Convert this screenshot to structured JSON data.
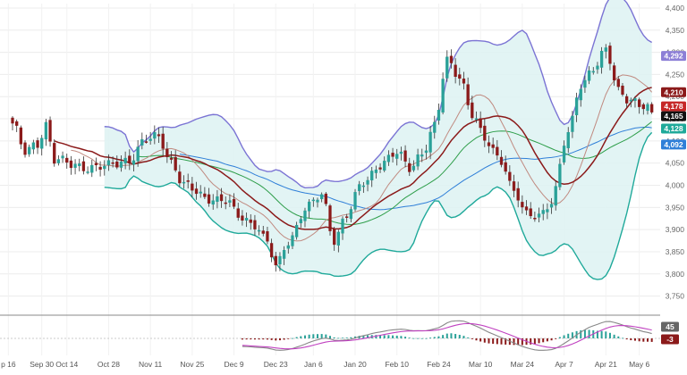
{
  "chart_data": {
    "type": "candlestick",
    "title": "",
    "xlabel": "",
    "ylabel": "",
    "grid": true,
    "ylim": [
      3725,
      4410
    ],
    "y_ticks": [
      3750,
      3800,
      3850,
      3900,
      3950,
      4000,
      4050,
      4100,
      4150,
      4200,
      4250,
      4300,
      4350,
      4400
    ],
    "y_tick_labels": [
      "3,750",
      "3,800",
      "3,850",
      "3,900",
      "3,950",
      "4,000",
      "4,050",
      "4,100",
      "4,150",
      "4,200",
      "4,250",
      "4,300",
      "4,350",
      "4,400"
    ],
    "x_range": [
      -3,
      155
    ],
    "x_ticks": [
      {
        "i": -1,
        "label": "p 16"
      },
      {
        "i": 7,
        "label": "Sep 30"
      },
      {
        "i": 13,
        "label": "Oct 14"
      },
      {
        "i": 23,
        "label": "Oct 28"
      },
      {
        "i": 33,
        "label": "Nov 11"
      },
      {
        "i": 43,
        "label": "Nov 25"
      },
      {
        "i": 53,
        "label": "Dec 9"
      },
      {
        "i": 63,
        "label": "Dec 23"
      },
      {
        "i": 72,
        "label": "Jan 6"
      },
      {
        "i": 82,
        "label": "Jan 20"
      },
      {
        "i": 92,
        "label": "Feb 10"
      },
      {
        "i": 102,
        "label": "Feb 24"
      },
      {
        "i": 112,
        "label": "Mar 10"
      },
      {
        "i": 122,
        "label": "Mar 24"
      },
      {
        "i": 132,
        "label": "Apr 7"
      },
      {
        "i": 142,
        "label": "Apr 21"
      },
      {
        "i": 150,
        "label": "May 6"
      }
    ],
    "price_badges": [
      {
        "value": 4292,
        "label": "4,292",
        "color": "#8c7fd6"
      },
      {
        "value": 4210,
        "label": "4,210",
        "color": "#8b1a1a"
      },
      {
        "value": 4178,
        "label": "4,178",
        "color": "#c62828"
      },
      {
        "value": 4165,
        "label": "4,165",
        "color": "#111111"
      },
      {
        "value": 4128,
        "label": "4,128",
        "color": "#1fa99a"
      },
      {
        "value": 4092,
        "label": "4,092",
        "color": "#2f7fd8"
      }
    ],
    "key_points": {
      "first_close": 4140,
      "low_close": 3812,
      "high_close": 4300,
      "last_close": 4165
    },
    "colors": {
      "up": "#2aa198",
      "down": "#8b1a1a",
      "bb_upper": "#7b74d4",
      "bb_lower": "#1fa99a",
      "bb_fill": "#dff3f3",
      "ma_fast": "#8b1a1a",
      "ma_mid": "#c08a80",
      "ma_slow": "#2e9e4a",
      "ma_long": "#2f7fd8",
      "macd": "#888888",
      "signal": "#c040c0"
    },
    "indicator": {
      "type": "macd",
      "badges": [
        {
          "value": 45,
          "label": "45",
          "color": "#666666"
        },
        {
          "value": -3,
          "label": "-3",
          "color": "#8b1a1a"
        }
      ]
    }
  }
}
